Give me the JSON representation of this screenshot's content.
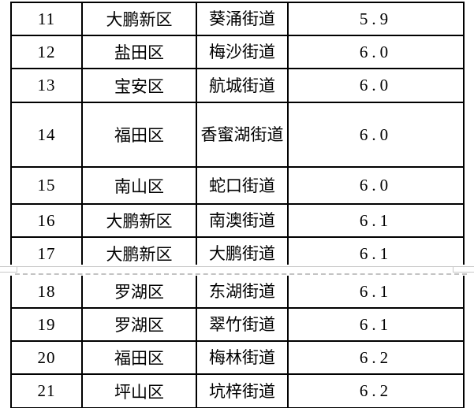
{
  "table": {
    "rows": [
      {
        "rank": "11",
        "district": "大鹏新区",
        "street": "葵涌街道",
        "value": "5.9"
      },
      {
        "rank": "12",
        "district": "盐田区",
        "street": "梅沙街道",
        "value": "6.0"
      },
      {
        "rank": "13",
        "district": "宝安区",
        "street": "航城街道",
        "value": "6.0"
      },
      {
        "rank": "14",
        "district": "福田区",
        "street": "香蜜湖街道",
        "value": "6.0"
      },
      {
        "rank": "15",
        "district": "南山区",
        "street": "蛇口街道",
        "value": "6.0"
      },
      {
        "rank": "16",
        "district": "大鹏新区",
        "street": "南澳街道",
        "value": "6.1"
      },
      {
        "rank": "17",
        "district": "大鹏新区",
        "street": "大鹏街道",
        "value": "6.1"
      },
      {
        "rank": "18",
        "district": "罗湖区",
        "street": "东湖街道",
        "value": "6.1"
      },
      {
        "rank": "19",
        "district": "罗湖区",
        "street": "翠竹街道",
        "value": "6.1"
      },
      {
        "rank": "20",
        "district": "福田区",
        "street": "梅林街道",
        "value": "6.2"
      },
      {
        "rank": "21",
        "district": "坪山区",
        "street": "坑梓街道",
        "value": "6.2"
      }
    ],
    "page_break_after_rank": "17"
  },
  "colors": {
    "table_border": "#000000",
    "text": "#000000",
    "background": "#ffffff",
    "page_edge_line": "#c8c8c8",
    "page_break_dashed_line": "#c4c4c4"
  }
}
